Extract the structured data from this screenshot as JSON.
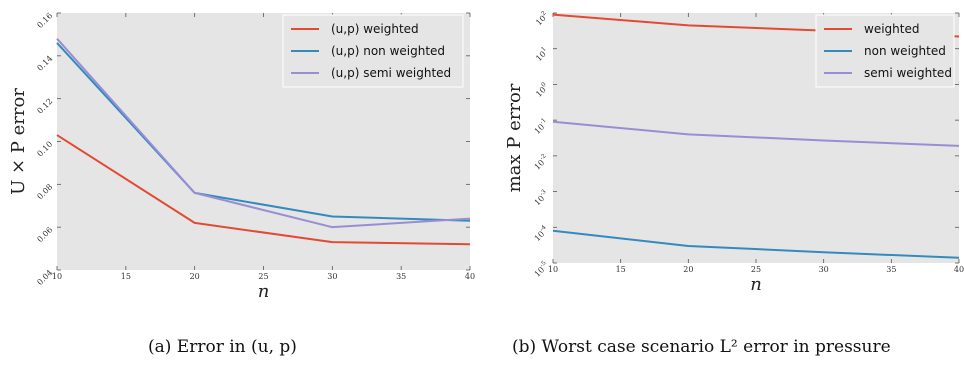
{
  "chart_data": [
    {
      "type": "line",
      "x": [
        10,
        20,
        30,
        40
      ],
      "xlim": [
        10,
        40
      ],
      "xticks": [
        10,
        15,
        20,
        25,
        30,
        35,
        40
      ],
      "xlabel": "n",
      "ylabel": "U × P error",
      "ylim": [
        0.04,
        0.16
      ],
      "yticks": [
        "0.04",
        "0.06",
        "0.08",
        "0.10",
        "0.12",
        "0.14",
        "0.16"
      ],
      "yscale": "linear",
      "grid": false,
      "legend_position": "top-right",
      "series": [
        {
          "name": "(u,p) weighted",
          "color": "#e24a33",
          "values": [
            0.103,
            0.062,
            0.053,
            0.052
          ]
        },
        {
          "name": "(u,p) non weighted",
          "color": "#348abd",
          "values": [
            0.146,
            0.076,
            0.065,
            0.063
          ]
        },
        {
          "name": "(u,p) semi weighted",
          "color": "#988ed5",
          "values": [
            0.148,
            0.076,
            0.06,
            0.064
          ]
        }
      ],
      "caption": "(a)  Error in (u, p)"
    },
    {
      "type": "line",
      "x": [
        10,
        20,
        30,
        40
      ],
      "xlim": [
        10,
        40
      ],
      "xticks": [
        10,
        15,
        20,
        25,
        30,
        35,
        40
      ],
      "xlabel": "n",
      "ylabel": "max P error",
      "ylim_exp": [
        -5,
        2
      ],
      "yticks": [
        "-5",
        "-4",
        "-3",
        "-2",
        "-1",
        "0",
        "1",
        "2"
      ],
      "yscale": "log",
      "grid": false,
      "legend_position": "top-right",
      "series": [
        {
          "name": "weighted",
          "color": "#e24a33",
          "values": [
            90,
            45,
            32,
            22
          ]
        },
        {
          "name": "non weighted",
          "color": "#348abd",
          "values": [
            8e-05,
            3e-05,
            2e-05,
            1.4e-05
          ]
        },
        {
          "name": "semi weighted",
          "color": "#988ed5",
          "values": [
            0.09,
            0.04,
            0.027,
            0.019
          ]
        }
      ],
      "caption": "(b)  Worst case scenario L² error in pressure"
    }
  ]
}
